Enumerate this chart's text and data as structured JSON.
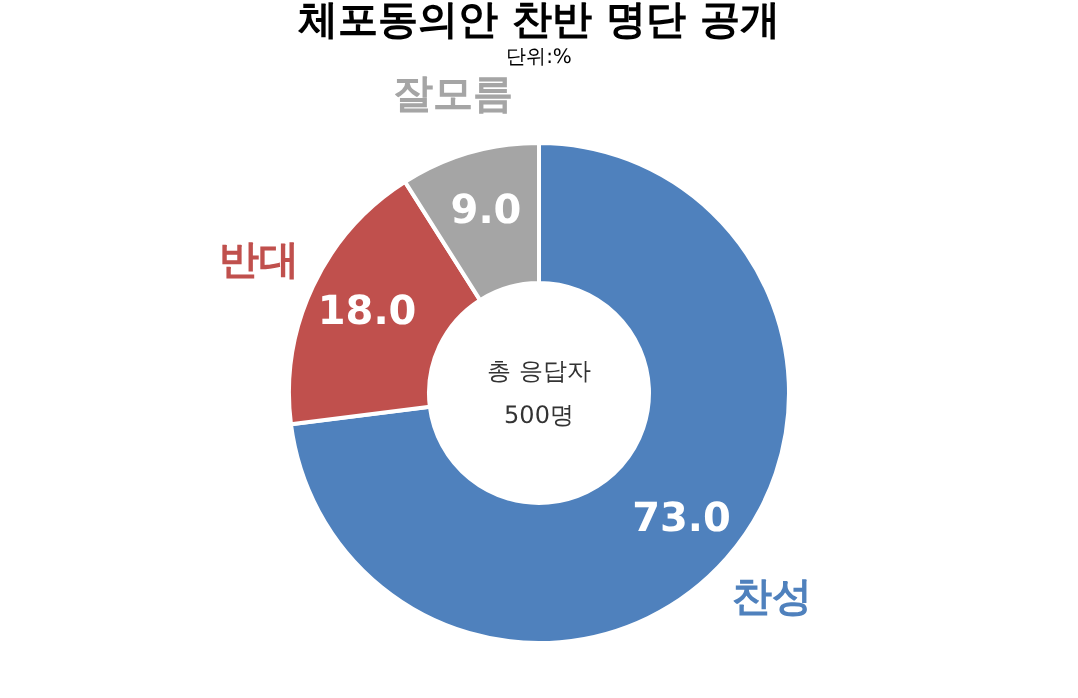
{
  "chart_data": {
    "type": "donut",
    "title": "체포동의안 찬반 명단 공개",
    "subtitle": "단위:%",
    "categories": [
      "찬성",
      "반대",
      "잘모름"
    ],
    "values": [
      73.0,
      18.0,
      9.0
    ],
    "colors": [
      "#4f81bd",
      "#c0504d",
      "#a5a5a5"
    ],
    "value_labels": [
      "73.0",
      "18.0",
      "9.0"
    ],
    "annotations": [
      "총 응답자",
      "500명"
    ],
    "legend": false
  }
}
